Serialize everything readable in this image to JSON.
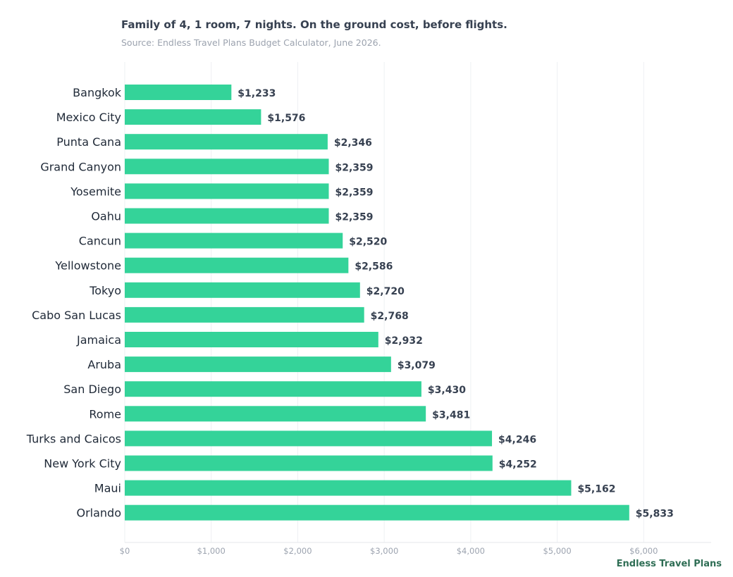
{
  "title": "Family of 4, 1 room, 7 nights. On the ground cost, before flights.",
  "subtitle": "Source: Endless Travel Plans Budget Calculator, June 2026.",
  "brand": "Endless Travel Plans",
  "colors": {
    "bar": "#34d399",
    "grid": "#eef0f3",
    "axis": "#e5e7eb"
  },
  "chart_data": {
    "type": "bar",
    "orientation": "horizontal",
    "categories": [
      "Bangkok",
      "Mexico City",
      "Punta Cana",
      "Grand Canyon",
      "Yosemite",
      "Oahu",
      "Cancun",
      "Yellowstone",
      "Tokyo",
      "Cabo San Lucas",
      "Jamaica",
      "Aruba",
      "San Diego",
      "Rome",
      "Turks and Caicos",
      "New York City",
      "Maui",
      "Orlando"
    ],
    "values": [
      1233,
      1576,
      2346,
      2359,
      2359,
      2359,
      2520,
      2586,
      2720,
      2768,
      2932,
      3079,
      3430,
      3481,
      4246,
      4252,
      5162,
      5833
    ],
    "value_labels": [
      "$1,233",
      "$1,576",
      "$2,346",
      "$2,359",
      "$2,359",
      "$2,359",
      "$2,520",
      "$2,586",
      "$2,720",
      "$2,768",
      "$2,932",
      "$3,079",
      "$3,430",
      "$3,481",
      "$4,246",
      "$4,252",
      "$5,162",
      "$5,833"
    ],
    "x_ticks": [
      0,
      1000,
      2000,
      3000,
      4000,
      5000,
      6000
    ],
    "x_tick_labels": [
      "$0",
      "$1,000",
      "$2,000",
      "$3,000",
      "$4,000",
      "$5,000",
      "$6,000"
    ],
    "xlim": [
      0,
      6780
    ],
    "grid": "vertical",
    "legend": "none"
  }
}
